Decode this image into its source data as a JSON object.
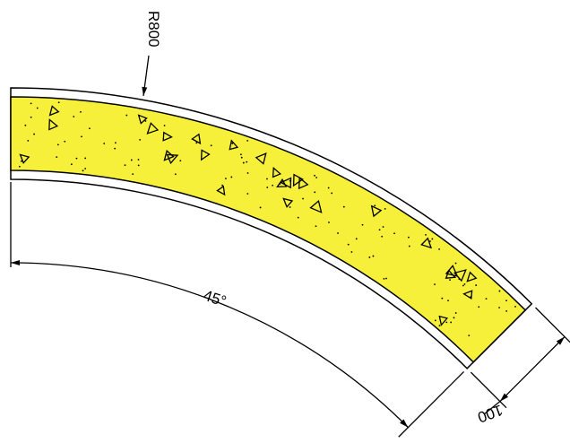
{
  "labels": {
    "radius": "R800",
    "angle": "45°",
    "thickness": "100"
  }
}
